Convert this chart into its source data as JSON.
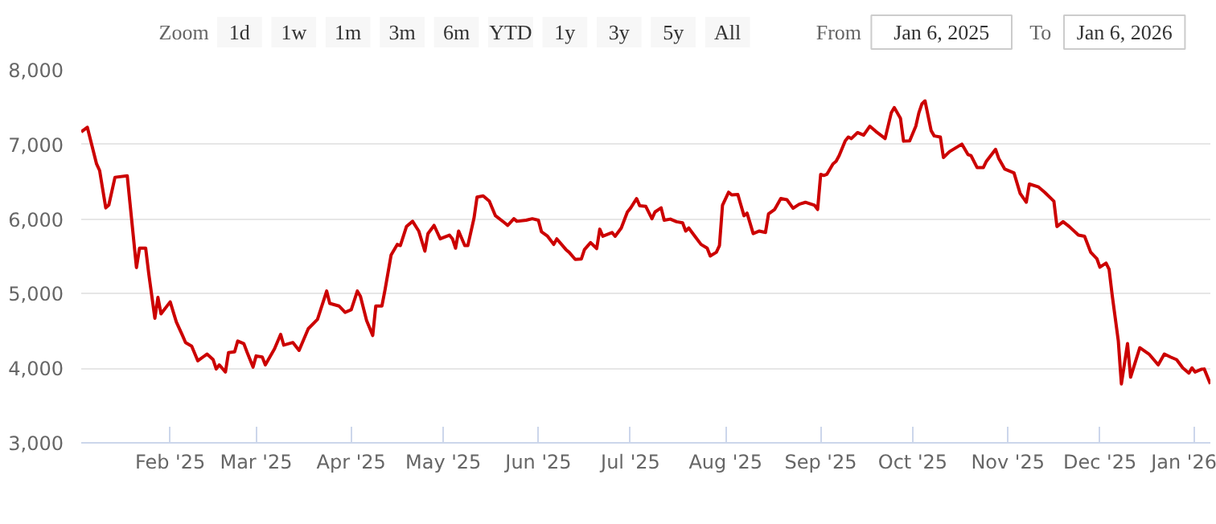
{
  "chart_data": {
    "type": "line",
    "annotations": [
      "Zoom",
      "1d",
      "1w",
      "1m",
      "3m",
      "6m",
      "YTD",
      "1y",
      "3y",
      "5y",
      "All",
      "From",
      "Jan 6, 2025",
      "To",
      "Jan 6, 2026"
    ],
    "x": [
      "2025-01-03",
      "2025-01-05",
      "2025-01-08",
      "2025-01-09",
      "2025-01-11",
      "2025-01-12",
      "2025-01-14",
      "2025-01-18",
      "2025-01-21",
      "2025-01-22",
      "2025-01-24",
      "2025-01-25",
      "2025-01-27",
      "2025-01-28",
      "2025-01-29",
      "2025-02-01",
      "2025-02-03",
      "2025-02-05",
      "2025-02-06",
      "2025-02-08",
      "2025-02-10",
      "2025-02-13",
      "2025-02-15",
      "2025-02-16",
      "2025-02-17",
      "2025-02-19",
      "2025-02-20",
      "2025-02-22",
      "2025-02-23",
      "2025-02-25",
      "2025-02-26",
      "2025-02-28",
      "2025-03-01",
      "2025-03-03",
      "2025-03-04",
      "2025-03-07",
      "2025-03-09",
      "2025-03-10",
      "2025-03-13",
      "2025-03-15",
      "2025-03-18",
      "2025-03-21",
      "2025-03-24",
      "2025-03-25",
      "2025-03-28",
      "2025-03-30",
      "2025-04-01",
      "2025-04-03",
      "2025-04-04",
      "2025-04-06",
      "2025-04-08",
      "2025-04-09",
      "2025-04-11",
      "2025-04-12",
      "2025-04-14",
      "2025-04-16",
      "2025-04-17",
      "2025-04-19",
      "2025-04-21",
      "2025-04-23",
      "2025-04-25",
      "2025-04-26",
      "2025-04-28",
      "2025-04-30",
      "2025-05-03",
      "2025-05-04",
      "2025-05-05",
      "2025-05-06",
      "2025-05-08",
      "2025-05-09",
      "2025-05-11",
      "2025-05-12",
      "2025-05-14",
      "2025-05-16",
      "2025-05-18",
      "2025-05-21",
      "2025-05-22",
      "2025-05-24",
      "2025-05-25",
      "2025-05-28",
      "2025-05-30",
      "2025-06-01",
      "2025-06-02",
      "2025-06-04",
      "2025-06-06",
      "2025-06-07",
      "2025-06-10",
      "2025-06-11",
      "2025-06-13",
      "2025-06-15",
      "2025-06-16",
      "2025-06-18",
      "2025-06-20",
      "2025-06-21",
      "2025-06-22",
      "2025-06-25",
      "2025-06-26",
      "2025-06-28",
      "2025-06-30",
      "2025-07-01",
      "2025-07-03",
      "2025-07-04",
      "2025-07-06",
      "2025-07-08",
      "2025-07-09",
      "2025-07-11",
      "2025-07-12",
      "2025-07-14",
      "2025-07-16",
      "2025-07-18",
      "2025-07-19",
      "2025-07-20",
      "2025-07-22",
      "2025-07-24",
      "2025-07-26",
      "2025-07-27",
      "2025-07-29",
      "2025-07-30",
      "2025-07-31",
      "2025-08-02",
      "2025-08-03",
      "2025-08-05",
      "2025-08-07",
      "2025-08-08",
      "2025-08-10",
      "2025-08-12",
      "2025-08-14",
      "2025-08-15",
      "2025-08-17",
      "2025-08-19",
      "2025-08-21",
      "2025-08-23",
      "2025-08-25",
      "2025-08-27",
      "2025-08-30",
      "2025-08-31",
      "2025-09-01",
      "2025-09-02",
      "2025-09-03",
      "2025-09-05",
      "2025-09-06",
      "2025-09-07",
      "2025-09-09",
      "2025-09-10",
      "2025-09-11",
      "2025-09-13",
      "2025-09-15",
      "2025-09-17",
      "2025-09-19",
      "2025-09-22",
      "2025-09-24",
      "2025-09-25",
      "2025-09-27",
      "2025-09-28",
      "2025-09-30",
      "2025-10-02",
      "2025-10-03",
      "2025-10-04",
      "2025-10-05",
      "2025-10-07",
      "2025-10-08",
      "2025-10-10",
      "2025-10-11",
      "2025-10-13",
      "2025-10-17",
      "2025-10-19",
      "2025-10-20",
      "2025-10-22",
      "2025-10-24",
      "2025-10-25",
      "2025-10-28",
      "2025-10-29",
      "2025-10-31",
      "2025-11-03",
      "2025-11-05",
      "2025-11-07",
      "2025-11-08",
      "2025-11-11",
      "2025-11-13",
      "2025-11-16",
      "2025-11-17",
      "2025-11-19",
      "2025-11-21",
      "2025-11-24",
      "2025-11-26",
      "2025-11-28",
      "2025-11-30",
      "2025-12-01",
      "2025-12-03",
      "2025-12-04",
      "2025-12-05",
      "2025-12-07",
      "2025-12-08",
      "2025-12-10",
      "2025-12-11",
      "2025-12-14",
      "2025-12-17",
      "2025-12-20",
      "2025-12-22",
      "2025-12-24",
      "2025-12-26",
      "2025-12-28",
      "2025-12-30",
      "2025-12-31",
      "2026-01-01",
      "2026-01-03",
      "2026-01-04",
      "2026-01-06"
    ],
    "series": [
      {
        "color": "#cc0000",
        "values": [
          7170,
          7230,
          6740,
          6650,
          6150,
          6190,
          6560,
          6580,
          5350,
          5610,
          5610,
          5270,
          4670,
          4950,
          4730,
          4890,
          4620,
          4440,
          4345,
          4295,
          4100,
          4190,
          4115,
          3990,
          4045,
          3950,
          4210,
          4220,
          4365,
          4330,
          4220,
          4015,
          4165,
          4150,
          4045,
          4260,
          4455,
          4310,
          4345,
          4240,
          4530,
          4655,
          5035,
          4870,
          4835,
          4750,
          4785,
          5035,
          4965,
          4640,
          4440,
          4835,
          4835,
          5050,
          5520,
          5660,
          5645,
          5900,
          5970,
          5840,
          5570,
          5805,
          5915,
          5735,
          5785,
          5735,
          5610,
          5840,
          5645,
          5645,
          6010,
          6295,
          6310,
          6240,
          6045,
          5950,
          5915,
          6005,
          5970,
          5985,
          6005,
          5985,
          5830,
          5770,
          5660,
          5735,
          5590,
          5555,
          5460,
          5465,
          5590,
          5685,
          5605,
          5865,
          5770,
          5820,
          5770,
          5880,
          6095,
          6145,
          6275,
          6180,
          6170,
          6005,
          6095,
          6150,
          5985,
          6000,
          5965,
          5950,
          5840,
          5880,
          5770,
          5660,
          5610,
          5505,
          5555,
          5645,
          6185,
          6360,
          6325,
          6330,
          6045,
          6080,
          5805,
          5840,
          5820,
          6070,
          6130,
          6275,
          6260,
          6145,
          6200,
          6225,
          6185,
          6130,
          6600,
          6585,
          6600,
          6740,
          6775,
          6850,
          7050,
          7100,
          7080,
          7160,
          7125,
          7245,
          7175,
          7080,
          7425,
          7495,
          7350,
          7045,
          7050,
          7245,
          7425,
          7545,
          7585,
          7185,
          7115,
          7100,
          6825,
          6905,
          7005,
          6865,
          6850,
          6690,
          6690,
          6775,
          6935,
          6815,
          6670,
          6620,
          6345,
          6225,
          6470,
          6430,
          6360,
          6240,
          5900,
          5965,
          5900,
          5785,
          5770,
          5555,
          5470,
          5355,
          5410,
          5325,
          4980,
          4365,
          3790,
          4330,
          3880,
          4275,
          4190,
          4045,
          4190,
          4150,
          4115,
          4005,
          3935,
          4005,
          3950,
          3985,
          3990,
          3790
        ]
      }
    ],
    "xlim": [
      "2025-01-03",
      "2026-01-06"
    ],
    "xticks": [
      {
        "value": "2025-02-01",
        "label": "Feb '25"
      },
      {
        "value": "2025-03-01",
        "label": "Mar '25"
      },
      {
        "value": "2025-04-01",
        "label": "Apr '25"
      },
      {
        "value": "2025-05-01",
        "label": "May '25"
      },
      {
        "value": "2025-06-01",
        "label": "Jun '25"
      },
      {
        "value": "2025-07-01",
        "label": "Jul '25"
      },
      {
        "value": "2025-08-01",
        "label": "Aug '25"
      },
      {
        "value": "2025-09-01",
        "label": "Sep '25"
      },
      {
        "value": "2025-10-01",
        "label": "Oct '25"
      },
      {
        "value": "2025-11-01",
        "label": "Nov '25"
      },
      {
        "value": "2025-12-01",
        "label": "Dec '25"
      },
      {
        "value": "2026-01-01",
        "label": "Jan '26"
      }
    ],
    "ylim": [
      3000,
      8000
    ],
    "yticks": [
      {
        "value": 3000,
        "label": "3,000"
      },
      {
        "value": 4000,
        "label": "4,000"
      },
      {
        "value": 5000,
        "label": "5,000"
      },
      {
        "value": 6000,
        "label": "6,000"
      },
      {
        "value": 7000,
        "label": "7,000"
      },
      {
        "value": 8000,
        "label": "8,000"
      }
    ],
    "grid": "y",
    "line_style": "solid"
  }
}
